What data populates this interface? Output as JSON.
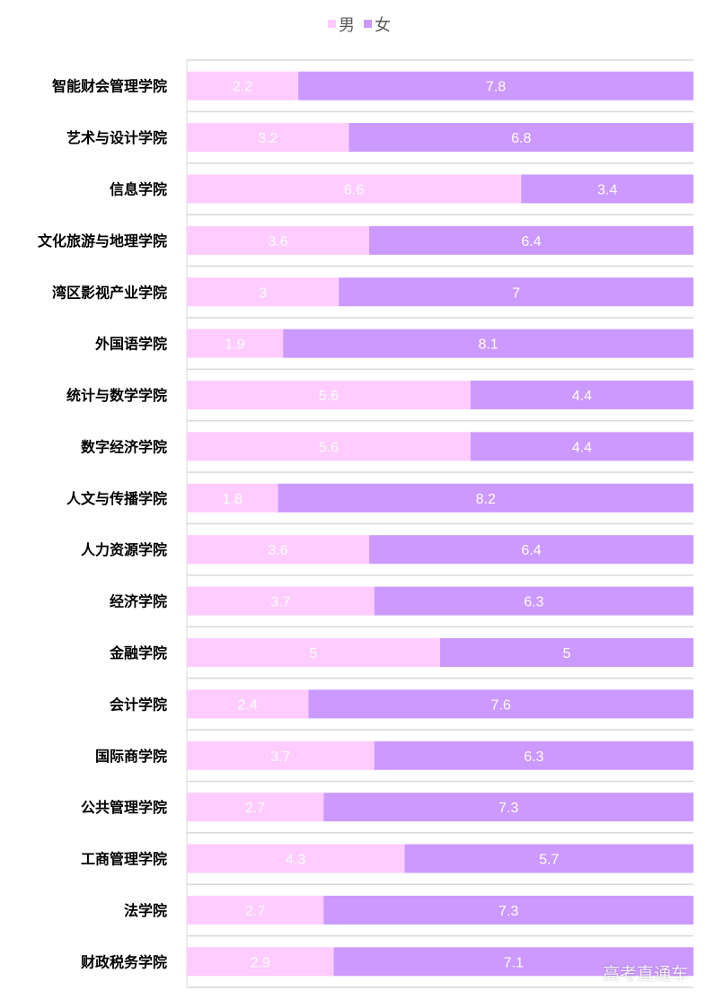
{
  "chart_data": {
    "type": "bar",
    "orientation": "horizontal",
    "stacked": true,
    "categories": [
      "智能财会管理学院",
      "艺术与设计学院",
      "信息学院",
      "文化旅游与地理学院",
      "湾区影视产业学院",
      "外国语学院",
      "统计与数学学院",
      "数字经济学院",
      "人文与传播学院",
      "人力资源学院",
      "经济学院",
      "金融学院",
      "会计学院",
      "国际商学院",
      "公共管理学院",
      "工商管理学院",
      "法学院",
      "财政税务学院"
    ],
    "series": [
      {
        "name": "男",
        "color": "#ffccff",
        "values": [
          2.2,
          3.2,
          6.6,
          3.6,
          3,
          1.9,
          5.6,
          5.6,
          1.8,
          3.6,
          3.7,
          5,
          2.4,
          3.7,
          2.7,
          4.3,
          2.7,
          2.9
        ]
      },
      {
        "name": "女",
        "color": "#cc99ff",
        "values": [
          7.8,
          6.8,
          3.4,
          6.4,
          7,
          8.1,
          4.4,
          4.4,
          8.2,
          6.4,
          6.3,
          5,
          7.6,
          6.3,
          7.3,
          5.7,
          7.3,
          7.1
        ]
      }
    ],
    "xlim": [
      0,
      10
    ],
    "legend": "top-center",
    "grid": true
  },
  "watermark": "高考直通车"
}
